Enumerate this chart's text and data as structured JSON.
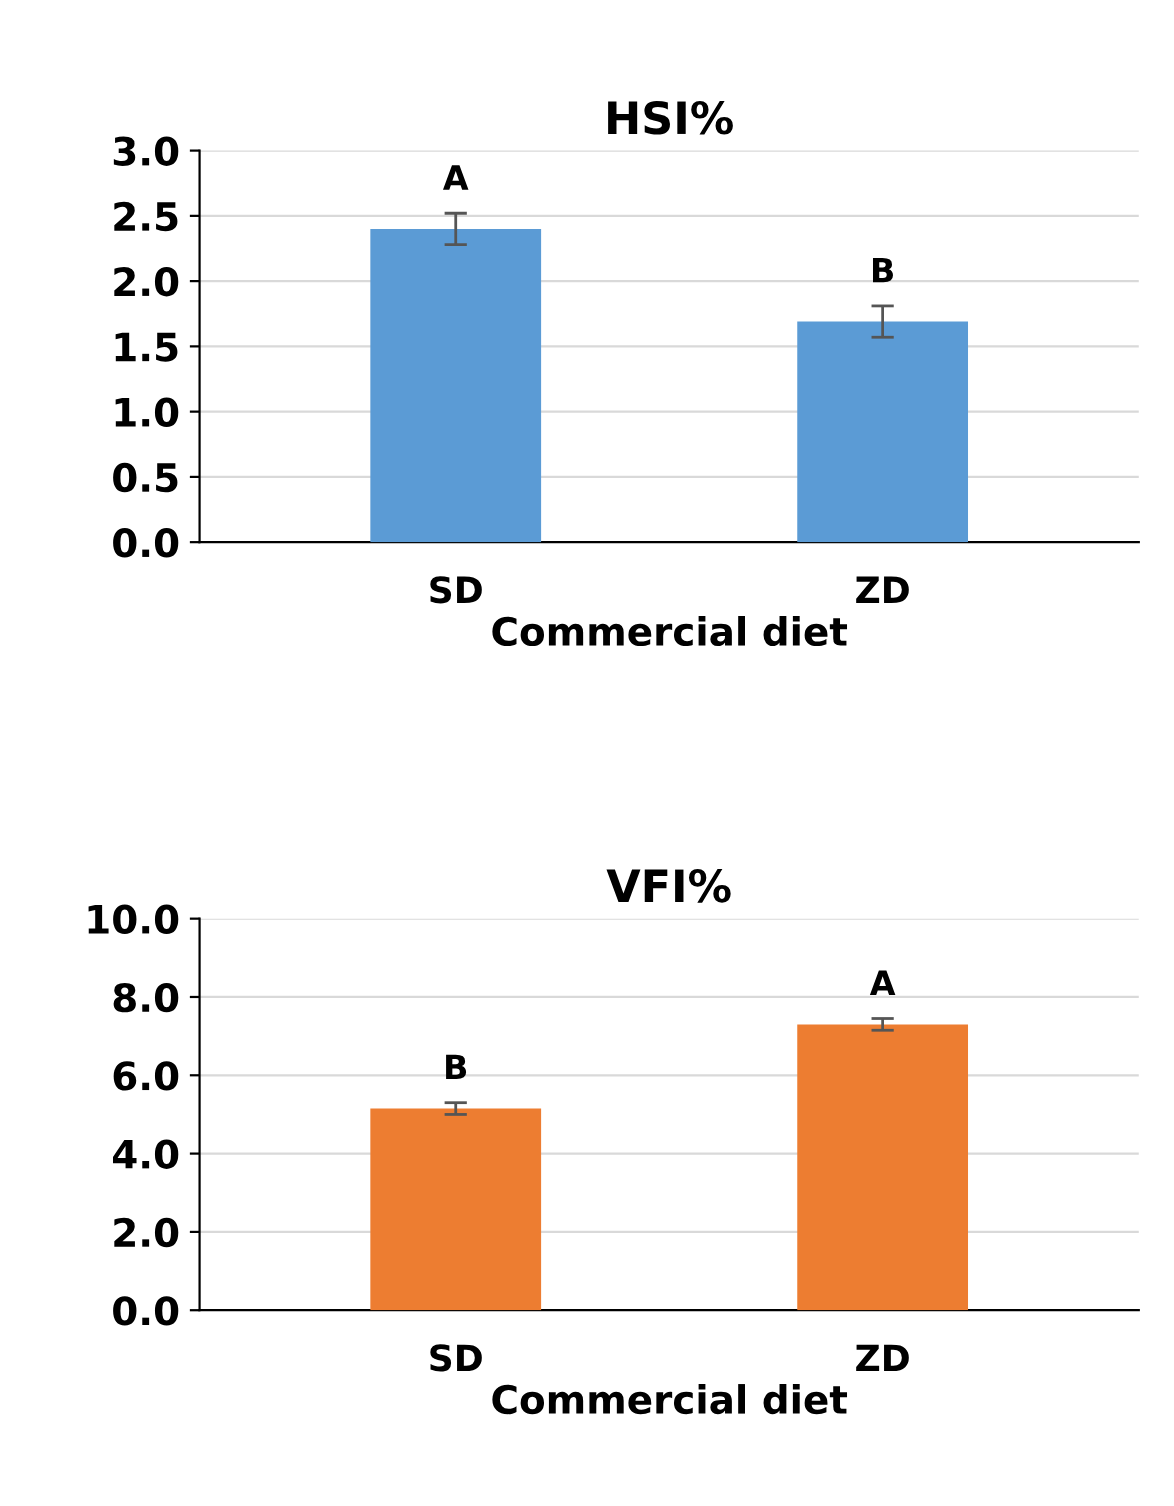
{
  "chart_data": [
    {
      "type": "bar",
      "title": "HSI%",
      "xlabel": "Commercial diet",
      "categories": [
        "SD",
        "ZD"
      ],
      "values": [
        2.4,
        1.69
      ],
      "errors": [
        0.12,
        0.12
      ],
      "color": "#5b9bd5",
      "ylim": [
        0,
        3
      ],
      "yticks": [
        {
          "value": 0,
          "label": "0.0"
        },
        {
          "value": 0.5,
          "label": "0.5"
        },
        {
          "value": 1,
          "label": "1.0"
        },
        {
          "value": 1.5,
          "label": "1.5"
        },
        {
          "value": 2,
          "label": "2.0"
        },
        {
          "value": 2.5,
          "label": "2.5"
        },
        {
          "value": 3,
          "label": "3.0"
        }
      ],
      "grid": "y",
      "annotations": [
        "A",
        "B"
      ]
    },
    {
      "type": "bar",
      "title": "VFI%",
      "xlabel": "Commercial diet",
      "categories": [
        "SD",
        "ZD"
      ],
      "values": [
        5.15,
        7.3
      ],
      "errors": [
        0.15,
        0.15
      ],
      "color": "#ed7d31",
      "ylim": [
        0,
        10
      ],
      "yticks": [
        {
          "value": 0,
          "label": "0.0"
        },
        {
          "value": 2,
          "label": "2.0"
        },
        {
          "value": 4,
          "label": "4.0"
        },
        {
          "value": 6,
          "label": "6.0"
        },
        {
          "value": 8,
          "label": "8.0"
        },
        {
          "value": 10,
          "label": "10.0"
        }
      ],
      "grid": "y",
      "annotations": [
        "B",
        "A"
      ]
    }
  ]
}
